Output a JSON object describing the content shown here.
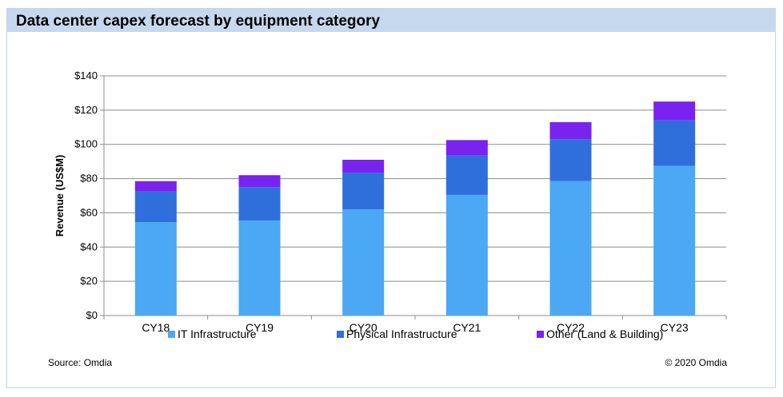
{
  "title": "Data center capex forecast by equipment category",
  "source": "Source: Omdia",
  "copyright": "© 2020 Omdia",
  "chart_data": {
    "type": "bar",
    "stacked": true,
    "categories": [
      "CY18",
      "CY19",
      "CY20",
      "CY21",
      "CY22",
      "CY23"
    ],
    "series": [
      {
        "name": "IT Infrastructure",
        "color": "#4aa8f5",
        "values": [
          54.5,
          55.5,
          62,
          70.5,
          78.5,
          87.5
        ]
      },
      {
        "name": "Physical Infrastructure",
        "color": "#2f6fdc",
        "values": [
          18,
          19.5,
          21.5,
          23,
          24.5,
          26.5
        ]
      },
      {
        "name": "Other (Land & Building)",
        "color": "#7a22ee",
        "values": [
          6,
          7,
          7.5,
          9,
          10,
          11
        ]
      }
    ],
    "ylabel": "Revenue (US$M)",
    "ylim": [
      0,
      140
    ],
    "yticks": [
      0,
      20,
      40,
      60,
      80,
      100,
      120,
      140
    ],
    "ytick_labels": [
      "$0",
      "$20",
      "$40",
      "$60",
      "$80",
      "$100",
      "$120",
      "$140"
    ],
    "grid": true,
    "legend_position": "bottom"
  }
}
